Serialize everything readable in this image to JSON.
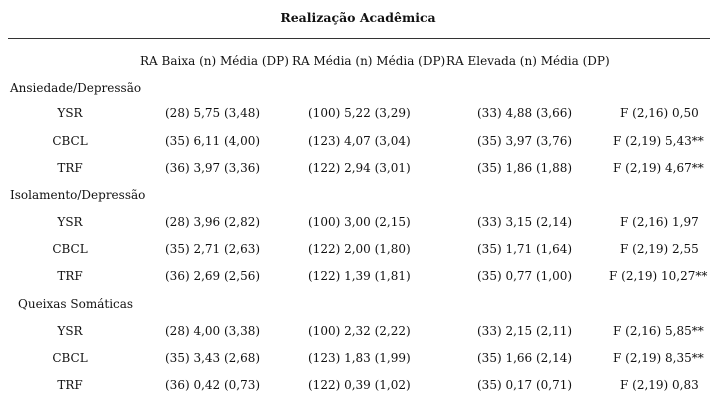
{
  "title": "Realização Acadêmica",
  "headers": [
    "RA Baixa (n) Média (DP)",
    "RA Média (n) Média (DP)",
    "RA Elevada (n) Média (DP)"
  ],
  "sections": [
    {
      "name": "Ansiedade/Depressão",
      "rows": [
        {
          "label": "YSR",
          "baixa": "(28) 5,75 (3,48)",
          "media": "(100) 5,22 (3,29)",
          "elevada": "(33) 4,88 (3,66)",
          "f": "F (2,16) 0,50"
        },
        {
          "label": "CBCL",
          "baixa": "(35) 6,11 (4,00)",
          "media": "(123) 4,07 (3,04)",
          "elevada": "(35) 3,97 (3,76)",
          "f": "F (2,19) 5,43**"
        },
        {
          "label": "TRF",
          "baixa": "(36) 3,97 (3,36)",
          "media": "(122) 2,94 (3,01)",
          "elevada": "(35) 1,86 (1,88)",
          "f": "F (2,19) 4,67**"
        }
      ]
    },
    {
      "name": "Isolamento/Depressão",
      "rows": [
        {
          "label": "YSR",
          "baixa": "(28) 3,96 (2,82)",
          "media": "(100) 3,00 (2,15)",
          "elevada": "(33) 3,15 (2,14)",
          "f": "F (2,16) 1,97"
        },
        {
          "label": "CBCL",
          "baixa": "(35) 2,71 (2,63)",
          "media": "(122) 2,00 (1,80)",
          "elevada": "(35) 1,71 (1,64)",
          "f": "F (2,19) 2,55"
        },
        {
          "label": "TRF",
          "baixa": "(36) 2,69 (2,56)",
          "media": "(122) 1,39 (1,81)",
          "elevada": "(35) 0,77 (1,00)",
          "f": "F (2,19) 10,27**"
        }
      ]
    },
    {
      "name": "Queixas Somáticas",
      "rows": [
        {
          "label": "YSR",
          "baixa": "(28) 4,00 (3,38)",
          "media": "(100) 2,32 (2,22)",
          "elevada": "(33) 2,15 (2,11)",
          "f": "F (2,16) 5,85**"
        },
        {
          "label": "CBCL",
          "baixa": "(35) 3,43 (2,68)",
          "media": "(123) 1,83 (1,99)",
          "elevada": "(35) 1,66 (2,14)",
          "f": "F (2,19) 8,35**"
        },
        {
          "label": "TRF",
          "baixa": "(36) 0,42 (0,73)",
          "media": "(122) 0,39 (1,02)",
          "elevada": "(35) 0,17 (0,71)",
          "f": "F (2,19) 0,83"
        }
      ]
    }
  ]
}
